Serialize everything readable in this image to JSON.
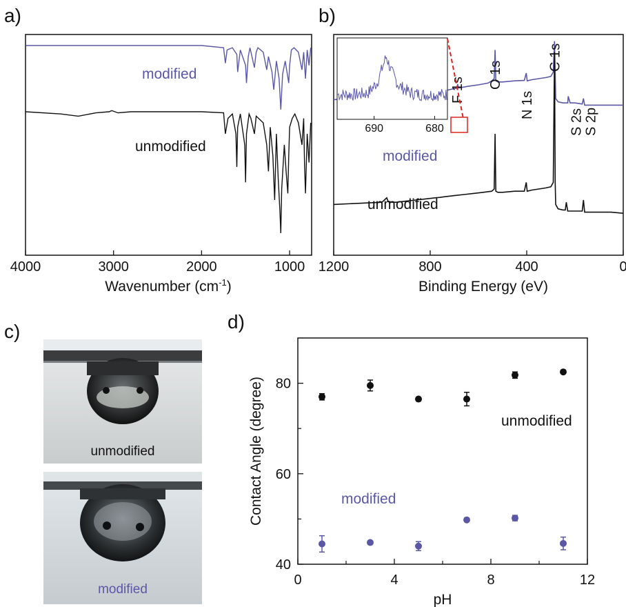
{
  "panels": {
    "a": {
      "letter": "a)",
      "chart_data": {
        "type": "line",
        "xlabel": "Wavenumber (cm-1)",
        "xlim": [
          4000,
          750
        ],
        "xticks": [
          "4000",
          "3000",
          "2000",
          "1000"
        ],
        "xtick_values": [
          4000,
          3000,
          2000,
          1000
        ],
        "series": [
          {
            "name": "modified",
            "color": "#5a57a6",
            "x": [
              4000,
              3500,
              3000,
              2500,
              2000,
              1750,
              1730,
              1710,
              1650,
              1600,
              1590,
              1560,
              1500,
              1490,
              1470,
              1450,
              1400,
              1380,
              1360,
              1300,
              1260,
              1240,
              1200,
              1180,
              1150,
              1120,
              1100,
              1080,
              1050,
              1010,
              1000,
              980,
              950,
              900,
              860,
              840,
              820,
              800,
              780,
              760
            ],
            "y": [
              0.95,
              0.95,
              0.95,
              0.95,
              0.95,
              0.94,
              0.87,
              0.93,
              0.94,
              0.91,
              0.83,
              0.93,
              0.86,
              0.78,
              0.9,
              0.94,
              0.85,
              0.92,
              0.94,
              0.92,
              0.84,
              0.9,
              0.83,
              0.75,
              0.88,
              0.8,
              0.66,
              0.82,
              0.88,
              0.78,
              0.86,
              0.93,
              0.94,
              0.92,
              0.84,
              0.92,
              0.8,
              0.93,
              0.86,
              0.94
            ]
          },
          {
            "name": "unmodified",
            "color": "#111111",
            "x": [
              4000,
              3600,
              3400,
              3200,
              3050,
              3020,
              2950,
              2800,
              2500,
              2000,
              1750,
              1730,
              1700,
              1650,
              1610,
              1600,
              1590,
              1560,
              1510,
              1500,
              1490,
              1460,
              1440,
              1400,
              1380,
              1300,
              1260,
              1240,
              1220,
              1190,
              1170,
              1150,
              1130,
              1110,
              1100,
              1090,
              1060,
              1040,
              1020,
              1010,
              1000,
              970,
              940,
              900,
              860,
              840,
              830,
              820,
              800,
              780,
              760
            ],
            "y": [
              0.65,
              0.64,
              0.63,
              0.645,
              0.65,
              0.655,
              0.645,
              0.65,
              0.65,
              0.65,
              0.645,
              0.55,
              0.62,
              0.64,
              0.55,
              0.4,
              0.58,
              0.64,
              0.5,
              0.33,
              0.55,
              0.64,
              0.62,
              0.55,
              0.63,
              0.6,
              0.5,
              0.38,
              0.58,
              0.45,
              0.25,
              0.55,
              0.35,
              0.2,
              0.1,
              0.3,
              0.5,
              0.38,
              0.28,
              0.45,
              0.58,
              0.62,
              0.64,
              0.6,
              0.5,
              0.62,
              0.4,
              0.28,
              0.55,
              0.42,
              0.6
            ]
          }
        ],
        "annotations": [
          {
            "text": "modified",
            "color": "#5a57a6"
          },
          {
            "text": "unmodified",
            "color": "#111111"
          }
        ]
      }
    },
    "b": {
      "letter": "b)",
      "chart_data": {
        "type": "line",
        "xlabel": "Binding Energy (eV)",
        "xlim": [
          1200,
          0
        ],
        "xticks": [
          "1200",
          "800",
          "400",
          "0"
        ],
        "xtick_values": [
          1200,
          800,
          400,
          0
        ],
        "series": [
          {
            "name": "modified",
            "color": "#5a57a6",
            "x": [
              1200,
              1100,
              1000,
              990,
              980,
              975,
              960,
              940,
              900,
              860,
              820,
              780,
              760,
              740,
              720,
              700,
              690,
              686,
              684,
              680,
              660,
              640,
              600,
              560,
              545,
              535,
              531,
              528,
              520,
              500,
              450,
              410,
              402,
              398,
              380,
              350,
              320,
              300,
              290,
              285,
              282,
              280,
              270,
              250,
              230,
              228,
              220,
              200,
              170,
              165,
              160,
              140,
              100,
              50,
              0
            ],
            "y": [
              0.705,
              0.71,
              0.715,
              0.725,
              0.735,
              0.72,
              0.715,
              0.715,
              0.72,
              0.725,
              0.73,
              0.735,
              0.74,
              0.745,
              0.75,
              0.755,
              0.757,
              0.775,
              0.758,
              0.758,
              0.762,
              0.766,
              0.772,
              0.78,
              0.79,
              0.8,
              0.93,
              0.79,
              0.785,
              0.785,
              0.79,
              0.792,
              0.825,
              0.79,
              0.795,
              0.8,
              0.805,
              0.81,
              0.83,
              0.97,
              0.83,
              0.71,
              0.695,
              0.69,
              0.69,
              0.72,
              0.69,
              0.69,
              0.685,
              0.71,
              0.68,
              0.68,
              0.68,
              0.68,
              0.68
            ]
          },
          {
            "name": "unmodified",
            "color": "#111111",
            "x": [
              1200,
              1100,
              1000,
              990,
              980,
              975,
              960,
              940,
              900,
              860,
              820,
              780,
              760,
              740,
              700,
              660,
              620,
              580,
              545,
              535,
              531,
              528,
              520,
              500,
              450,
              410,
              402,
              398,
              380,
              350,
              320,
              300,
              290,
              285,
              282,
              280,
              270,
              250,
              240,
              236,
              230,
              200,
              170,
              165,
              160,
              140,
              100,
              50,
              0
            ],
            "y": [
              0.23,
              0.235,
              0.24,
              0.25,
              0.26,
              0.245,
              0.24,
              0.24,
              0.245,
              0.25,
              0.255,
              0.26,
              0.262,
              0.265,
              0.27,
              0.275,
              0.28,
              0.285,
              0.29,
              0.3,
              0.55,
              0.29,
              0.285,
              0.285,
              0.29,
              0.29,
              0.33,
              0.29,
              0.295,
              0.3,
              0.305,
              0.31,
              0.33,
              0.92,
              0.33,
              0.23,
              0.21,
              0.205,
              0.205,
              0.24,
              0.2,
              0.2,
              0.2,
              0.25,
              0.195,
              0.195,
              0.195,
              0.195,
              0.19
            ]
          }
        ],
        "peak_labels": [
          {
            "text": "F 1s",
            "x": 688
          },
          {
            "text": "O 1s",
            "x": 531
          },
          {
            "text": "N 1s",
            "x": 400
          },
          {
            "text": "C 1s",
            "x": 285
          },
          {
            "text": "S 2s",
            "x": 230
          },
          {
            "text": "S 2p",
            "x": 165
          }
        ],
        "annotations": [
          {
            "text": "modified",
            "color": "#5a57a6"
          },
          {
            "text": "unmodified",
            "color": "#111111"
          }
        ],
        "inset": {
          "xlim": [
            696,
            678
          ],
          "xticks": [
            "690",
            "680"
          ],
          "xtick_values": [
            690,
            680
          ],
          "series": {
            "name": "F 1s",
            "color": "#5a57a6",
            "x": [
              696,
              693,
              691,
              689.5,
              688.8,
              688,
              687.2,
              686,
              684,
              682,
              678
            ],
            "y": [
              0.3,
              0.3,
              0.32,
              0.45,
              0.6,
              0.78,
              0.6,
              0.42,
              0.32,
              0.3,
              0.3
            ]
          },
          "connector_color": "#e0201c"
        }
      }
    },
    "c": {
      "letter": "c)",
      "photos": [
        {
          "label": "unmodified",
          "label_color": "#111111"
        },
        {
          "label": "modified",
          "label_color": "#5a57a6"
        }
      ]
    },
    "d": {
      "letter": "d)",
      "chart_data": {
        "type": "scatter",
        "xlabel": "pH",
        "ylabel": "Contact Angle (degree)",
        "xlim": [
          0,
          12
        ],
        "ylim": [
          40,
          90
        ],
        "xticks": [
          "0",
          "4",
          "8",
          "12"
        ],
        "xtick_values": [
          0,
          4,
          8,
          12
        ],
        "yticks": [
          "40",
          "60",
          "80"
        ],
        "ytick_values": [
          40,
          60,
          80
        ],
        "series": [
          {
            "name": "unmodified",
            "color": "#111111",
            "x": [
              1,
              3,
              5,
              7,
              9,
              11
            ],
            "y": [
              77.0,
              79.5,
              76.5,
              76.5,
              81.8,
              82.5
            ],
            "err": [
              0.7,
              1.2,
              0.3,
              1.5,
              0.7,
              0.3
            ]
          },
          {
            "name": "modified",
            "color": "#5a57a6",
            "x": [
              1,
              3,
              5,
              7,
              9,
              11
            ],
            "y": [
              44.5,
              44.8,
              44.0,
              49.8,
              50.2,
              44.6
            ],
            "err": [
              1.8,
              0.3,
              1.0,
              0.3,
              0.6,
              1.4
            ]
          }
        ],
        "annotations": [
          {
            "text": "unmodified",
            "color": "#111111"
          },
          {
            "text": "modified",
            "color": "#5a57a6"
          }
        ]
      }
    }
  }
}
